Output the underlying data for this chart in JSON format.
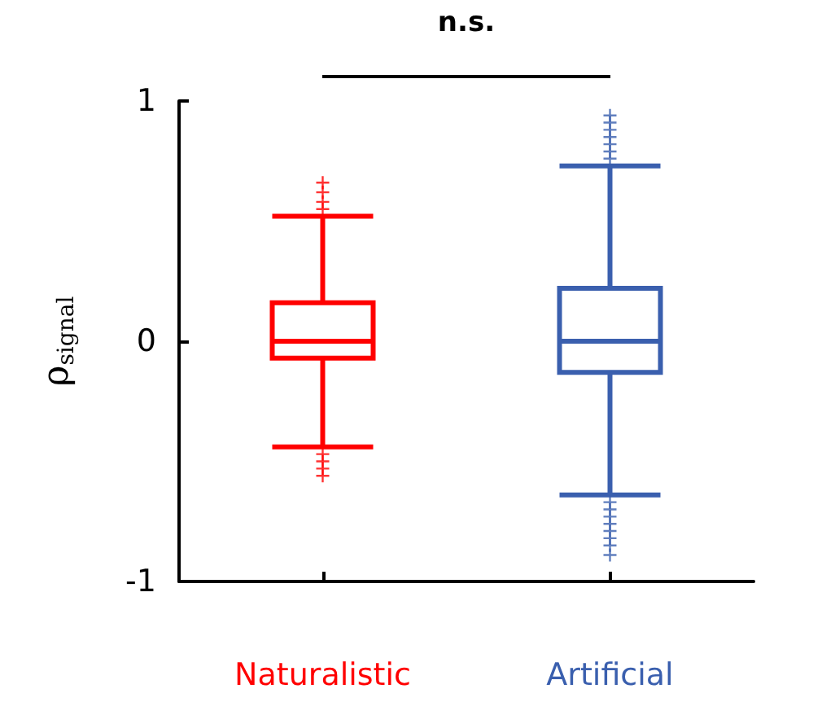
{
  "chart_data": {
    "type": "box",
    "ylabel": "ρ$_{signal}$",
    "categories": [
      "Naturalistic",
      "Artificial"
    ],
    "colors": [
      "#ff0000",
      "#3a5fae"
    ],
    "boxes": [
      {
        "low": -0.44,
        "q1": -0.07,
        "median": 0,
        "q3": 0.16,
        "high": 0.52,
        "outliers": [
          0.55,
          0.58,
          0.62,
          0.66,
          -0.47,
          -0.5,
          -0.53,
          -0.56
        ]
      },
      {
        "low": -0.64,
        "q1": -0.13,
        "median": 0,
        "q3": 0.22,
        "high": 0.73,
        "outliers": [
          0.76,
          0.79,
          0.82,
          0.85,
          0.88,
          0.91,
          0.94,
          -0.67,
          -0.7,
          -0.73,
          -0.76,
          -0.79,
          -0.82,
          -0.85,
          -0.89
        ]
      }
    ],
    "ylim": [
      -1,
      1
    ],
    "yticks": [
      -1,
      0,
      1
    ],
    "marker": "cross",
    "annotations": [
      "n.s."
    ]
  }
}
